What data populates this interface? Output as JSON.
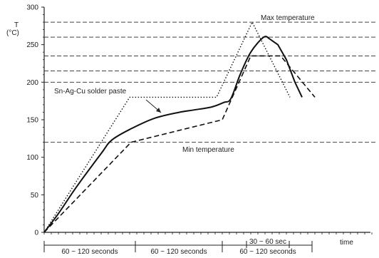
{
  "chart_data": {
    "type": "line",
    "ylabel": "T",
    "yunit": "(°C)",
    "xlabel": "time",
    "ylim": [
      0,
      300
    ],
    "yticks": [
      0,
      50,
      100,
      150,
      200,
      250,
      300
    ],
    "reference_lines": [
      {
        "y": 280,
        "label": "Max temperature"
      },
      {
        "y": 260,
        "label": ""
      },
      {
        "y": 235,
        "label": ""
      },
      {
        "y": 215,
        "label": ""
      },
      {
        "y": 200,
        "label": ""
      },
      {
        "y": 120,
        "label": "Min temperature"
      }
    ],
    "series": [
      {
        "name": "",
        "style": "dotted",
        "x": [
          0,
          120,
          242,
          292,
          345
        ],
        "y": [
          0,
          180,
          180,
          280,
          180
        ]
      },
      {
        "name": "Sn-Ag-Cu solder paste",
        "style": "solid",
        "x": [
          0,
          20,
          45,
          80,
          95,
          122,
          155,
          190,
          210,
          235,
          252,
          262,
          275,
          290,
          308,
          316
        ],
        "y": [
          0,
          25,
          60,
          105,
          123,
          138,
          152,
          160,
          163,
          167,
          173,
          178,
          210,
          240,
          260,
          258
        ]
      },
      {
        "name": "",
        "style": "dashed",
        "x": [
          0,
          122,
          250,
          290,
          332,
          380
        ],
        "y": [
          0,
          120,
          150,
          235,
          235,
          180
        ]
      }
    ],
    "annotations": [
      {
        "text": "Sn-Ag-Cu solder paste",
        "target": "solid curve"
      },
      {
        "text": "60 ~ 120 seconds",
        "span": "preheat ramp"
      },
      {
        "text": "60 ~ 120 seconds",
        "span": "soak"
      },
      {
        "text": "60 ~ 120 seconds",
        "span": "reflow"
      },
      {
        "text": "30 ~ 60 sec",
        "span": "peak"
      }
    ]
  }
}
